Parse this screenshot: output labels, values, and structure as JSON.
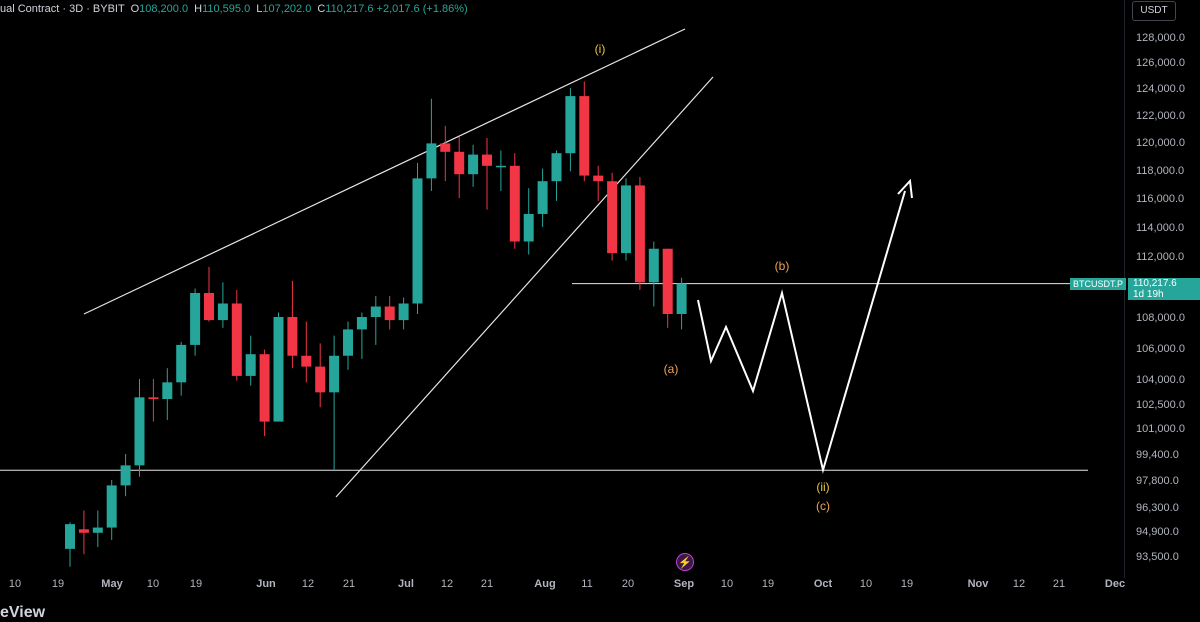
{
  "legend": {
    "title": "ual Contract · 3D · BYBIT",
    "open_label": "O",
    "open": "108,200.0",
    "high_label": "H",
    "high": "110,595.0",
    "low_label": "L",
    "low": "107,202.0",
    "close_label": "C",
    "close": "110,217.6",
    "change": "+2,017.6 (+1.86%)"
  },
  "currency": "USDT",
  "symbol_tag": "BTCUSDT.P",
  "last_price": "110,217.6",
  "countdown": "1d 19h",
  "footer_text": "eView",
  "colors": {
    "up": "#26a69a",
    "down": "#f23645",
    "bg": "#000000",
    "orange": "#f0a253",
    "yellow": "#e8c547"
  },
  "chart_data": {
    "type": "candlestick",
    "y_ticks": [
      128000,
      126000,
      124000,
      122000,
      120000,
      118000,
      116000,
      114000,
      112000,
      110000,
      108000,
      106000,
      104000,
      102500,
      101000,
      99400,
      97800,
      96300,
      94900,
      93500
    ],
    "y_tick_labels": [
      "128,000.0",
      "126,000.0",
      "124,000.0",
      "122,000.0",
      "120,000.0",
      "118,000.0",
      "116,000.0",
      "114,000.0",
      "112,000.0",
      "110,000.0",
      "108,000.0",
      "106,000.0",
      "104,000.0",
      "102,500.0",
      "101,000.0",
      "99,400.0",
      "97,800.0",
      "96,300.0",
      "94,900.0",
      "93,500.0"
    ],
    "x_ticks": [
      "10",
      "19",
      "May",
      "10",
      "19",
      "Jun",
      "12",
      "21",
      "Jul",
      "12",
      "21",
      "Aug",
      "11",
      "20",
      "Sep",
      "10",
      "19",
      "Oct",
      "10",
      "19",
      "Nov",
      "12",
      "21",
      "Dec"
    ],
    "candles": [
      {
        "o": 93900,
        "h": 95400,
        "l": 92900,
        "c": 95300
      },
      {
        "o": 95000,
        "h": 96100,
        "l": 93600,
        "c": 94800
      },
      {
        "o": 94800,
        "h": 96100,
        "l": 94000,
        "c": 95100
      },
      {
        "o": 95100,
        "h": 97800,
        "l": 94400,
        "c": 97500
      },
      {
        "o": 97500,
        "h": 99400,
        "l": 96900,
        "c": 98700
      },
      {
        "o": 98700,
        "h": 104000,
        "l": 98000,
        "c": 102900
      },
      {
        "o": 102900,
        "h": 104000,
        "l": 101400,
        "c": 102800
      },
      {
        "o": 102800,
        "h": 104700,
        "l": 101500,
        "c": 103800
      },
      {
        "o": 103800,
        "h": 106400,
        "l": 103000,
        "c": 106200
      },
      {
        "o": 106200,
        "h": 109900,
        "l": 105500,
        "c": 109600
      },
      {
        "o": 109600,
        "h": 111300,
        "l": 107700,
        "c": 107800
      },
      {
        "o": 107800,
        "h": 110300,
        "l": 107300,
        "c": 108900
      },
      {
        "o": 108900,
        "h": 109800,
        "l": 103900,
        "c": 104200
      },
      {
        "o": 104200,
        "h": 106800,
        "l": 103600,
        "c": 105600
      },
      {
        "o": 105600,
        "h": 105900,
        "l": 100500,
        "c": 101400
      },
      {
        "o": 101400,
        "h": 108300,
        "l": 101400,
        "c": 108000
      },
      {
        "o": 108000,
        "h": 110400,
        "l": 104700,
        "c": 105500
      },
      {
        "o": 105500,
        "h": 107700,
        "l": 103800,
        "c": 104800
      },
      {
        "o": 104800,
        "h": 106300,
        "l": 102300,
        "c": 103200
      },
      {
        "o": 103200,
        "h": 106800,
        "l": 98400,
        "c": 105500
      },
      {
        "o": 105500,
        "h": 107700,
        "l": 104600,
        "c": 107200
      },
      {
        "o": 107200,
        "h": 108300,
        "l": 105300,
        "c": 108000
      },
      {
        "o": 108000,
        "h": 109400,
        "l": 106200,
        "c": 108700
      },
      {
        "o": 108700,
        "h": 109400,
        "l": 107200,
        "c": 107800
      },
      {
        "o": 107800,
        "h": 109300,
        "l": 107200,
        "c": 108900
      },
      {
        "o": 108900,
        "h": 118500,
        "l": 108200,
        "c": 117400
      },
      {
        "o": 117400,
        "h": 123200,
        "l": 116500,
        "c": 119900
      },
      {
        "o": 119900,
        "h": 121200,
        "l": 117200,
        "c": 119300
      },
      {
        "o": 119300,
        "h": 120400,
        "l": 116000,
        "c": 117700
      },
      {
        "o": 117700,
        "h": 119800,
        "l": 116800,
        "c": 119100
      },
      {
        "o": 119100,
        "h": 120300,
        "l": 115200,
        "c": 118300
      },
      {
        "o": 118300,
        "h": 119400,
        "l": 116500,
        "c": 118300
      },
      {
        "o": 118300,
        "h": 119200,
        "l": 112500,
        "c": 113000
      },
      {
        "o": 113000,
        "h": 116700,
        "l": 112100,
        "c": 114900
      },
      {
        "o": 114900,
        "h": 118100,
        "l": 114000,
        "c": 117200
      },
      {
        "o": 117200,
        "h": 119400,
        "l": 115800,
        "c": 119200
      },
      {
        "o": 119200,
        "h": 124000,
        "l": 117900,
        "c": 123400
      },
      {
        "o": 123400,
        "h": 124500,
        "l": 117200,
        "c": 117600
      },
      {
        "o": 117600,
        "h": 118300,
        "l": 115800,
        "c": 117200
      },
      {
        "o": 117200,
        "h": 117800,
        "l": 111700,
        "c": 112200
      },
      {
        "o": 112200,
        "h": 117400,
        "l": 111700,
        "c": 116900
      },
      {
        "o": 116900,
        "h": 117500,
        "l": 109800,
        "c": 110300
      },
      {
        "o": 110300,
        "h": 113000,
        "l": 108700,
        "c": 112500
      },
      {
        "o": 112500,
        "h": 112500,
        "l": 107300,
        "c": 108200
      },
      {
        "o": 108200,
        "h": 110595,
        "l": 107202,
        "c": 110217.6
      }
    ],
    "horizontal_lines": [
      110217.6,
      98400
    ],
    "wave_labels": [
      {
        "text": "(i)",
        "color": "yellow"
      },
      {
        "text": "(a)",
        "color": "orange"
      },
      {
        "text": "(b)",
        "color": "orange"
      },
      {
        "text": "(ii)",
        "color": "yellow"
      },
      {
        "text": "(c)",
        "color": "orange"
      }
    ]
  }
}
